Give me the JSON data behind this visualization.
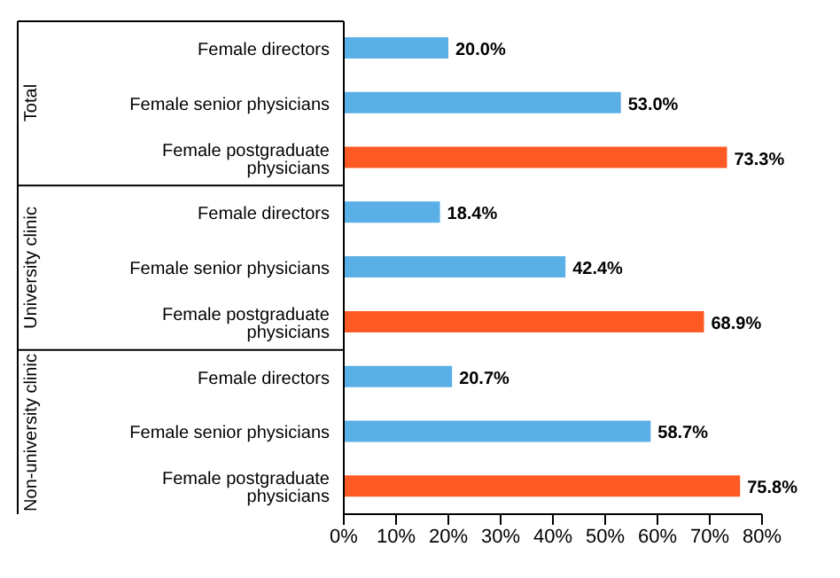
{
  "chart_data": {
    "type": "bar",
    "orientation": "horizontal",
    "categories": [
      "Female directors",
      "Female senior physicians",
      "Female postgraduate physicians",
      "Female directors",
      "Female senior physicians",
      "Female postgraduate physicians",
      "Female directors",
      "Female senior physicians",
      "Female postgraduate physicians"
    ],
    "values": [
      20.0,
      53.0,
      73.3,
      18.4,
      42.4,
      68.9,
      20.7,
      58.7,
      75.8
    ],
    "colors": [
      "#5aafe6",
      "#5aafe6",
      "#ff5a23",
      "#5aafe6",
      "#5aafe6",
      "#ff5a23",
      "#5aafe6",
      "#5aafe6",
      "#ff5a23"
    ],
    "value_labels": [
      "20.0%",
      "53.0%",
      "73.3%",
      "18.4%",
      "42.4%",
      "68.9%",
      "20.7%",
      "58.7%",
      "75.8%"
    ],
    "xlim": [
      0,
      80
    ],
    "xticks": [
      {
        "value": 0,
        "label": "0%"
      },
      {
        "value": 10,
        "label": "10%"
      },
      {
        "value": 20,
        "label": "20%"
      },
      {
        "value": 30,
        "label": "30%"
      },
      {
        "value": 40,
        "label": "40%"
      },
      {
        "value": 50,
        "label": "50%"
      },
      {
        "value": 60,
        "label": "60%"
      },
      {
        "value": 70,
        "label": "70%"
      },
      {
        "value": 80,
        "label": "80%"
      }
    ],
    "annotations": [
      "Total",
      "University clinic",
      "Non-university clinic"
    ],
    "grid": false,
    "legend": false
  }
}
